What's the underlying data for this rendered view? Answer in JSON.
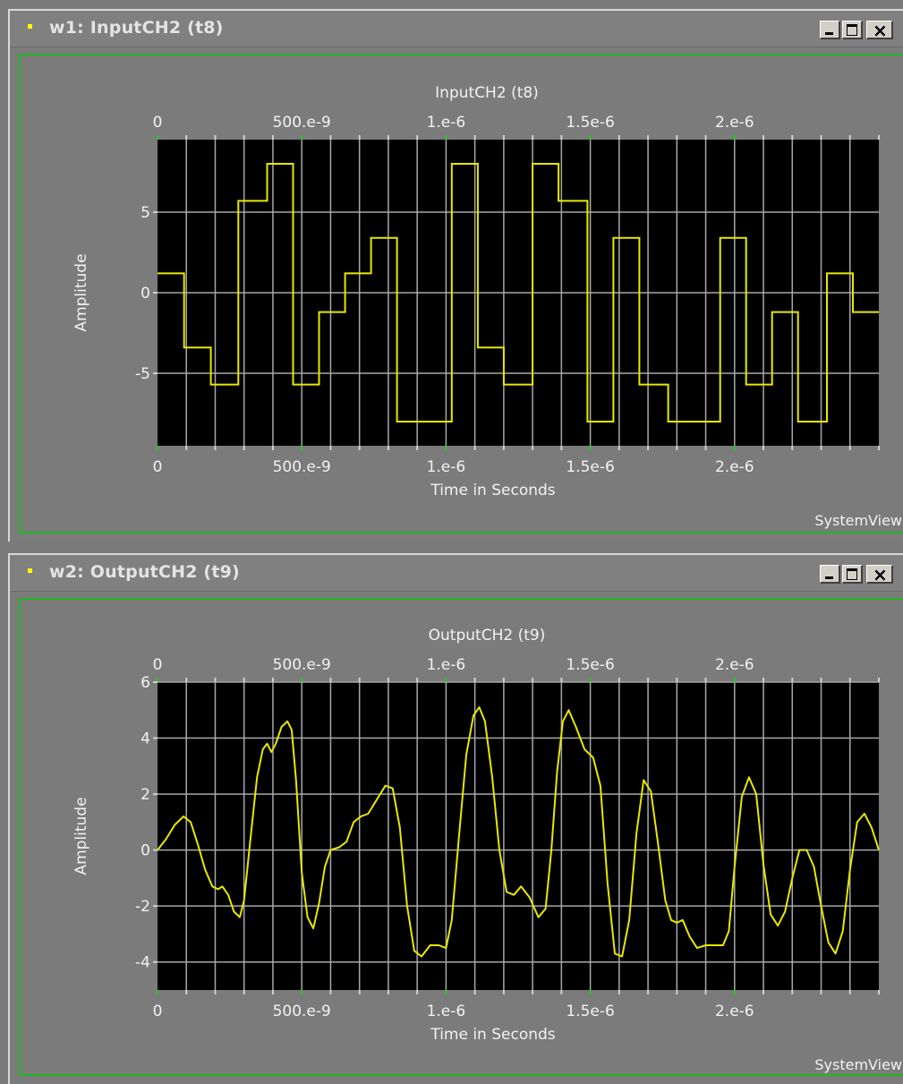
{
  "colors": {
    "plot_bg": "#000000",
    "trace": "#e8e800",
    "grid": "#8a8a8a",
    "frame": "#1fb81f"
  },
  "windows": [
    {
      "title": "w1: InputCH2 (t8)",
      "brand": "SystemView",
      "controls": {
        "minimize_icon": "minimize-icon",
        "maximize_icon": "maximize-icon",
        "close_icon": "close-icon"
      }
    },
    {
      "title": "w2: OutputCH2 (t9)",
      "brand": "SystemView",
      "controls": {
        "minimize_icon": "minimize-icon",
        "maximize_icon": "maximize-icon",
        "close_icon": "close-icon"
      }
    }
  ],
  "chart_data": [
    {
      "type": "line",
      "step": true,
      "title": "InputCH2 (t8)",
      "xlabel": "Time in Seconds",
      "ylabel": "Amplitude",
      "xlim": [
        0,
        2.5e-06
      ],
      "ylim": [
        -9.5,
        9.5
      ],
      "xticks": [
        0,
        5e-07,
        1e-06,
        1.5e-06,
        2e-06
      ],
      "xtick_labels": [
        "0",
        "500.e-9",
        "1.e-6",
        "1.5e-6",
        "2.e-6"
      ],
      "yticks": [
        5,
        0,
        -5
      ],
      "ytick_labels": [
        "5",
        "0",
        "-5"
      ],
      "grid": true,
      "series": [
        {
          "values": [
            [
              0,
              1.2
            ],
            [
              9.2e-08,
              1.2
            ],
            [
              9.2e-08,
              -3.4
            ],
            [
              1.85e-07,
              -3.4
            ],
            [
              1.85e-07,
              -5.7
            ],
            [
              2.8e-07,
              -5.7
            ],
            [
              2.8e-07,
              5.7
            ],
            [
              3.8e-07,
              5.7
            ],
            [
              3.8e-07,
              8.0
            ],
            [
              4.7e-07,
              8.0
            ],
            [
              4.7e-07,
              -5.7
            ],
            [
              5.6e-07,
              -5.7
            ],
            [
              5.6e-07,
              -1.2
            ],
            [
              6.5e-07,
              -1.2
            ],
            [
              6.5e-07,
              1.2
            ],
            [
              7.4e-07,
              1.2
            ],
            [
              7.4e-07,
              3.4
            ],
            [
              8.3e-07,
              3.4
            ],
            [
              8.3e-07,
              -8.0
            ],
            [
              1.02e-06,
              -8.0
            ],
            [
              1.02e-06,
              8.0
            ],
            [
              1.11e-06,
              8.0
            ],
            [
              1.11e-06,
              -3.4
            ],
            [
              1.2e-06,
              -3.4
            ],
            [
              1.2e-06,
              -5.7
            ],
            [
              1.3e-06,
              -5.7
            ],
            [
              1.3e-06,
              8.0
            ],
            [
              1.39e-06,
              8.0
            ],
            [
              1.39e-06,
              5.7
            ],
            [
              1.49e-06,
              5.7
            ],
            [
              1.49e-06,
              -8.0
            ],
            [
              1.58e-06,
              -8.0
            ],
            [
              1.58e-06,
              3.4
            ],
            [
              1.67e-06,
              3.4
            ],
            [
              1.67e-06,
              -5.7
            ],
            [
              1.77e-06,
              -5.7
            ],
            [
              1.77e-06,
              -8.0
            ],
            [
              1.95e-06,
              -8.0
            ],
            [
              1.95e-06,
              3.4
            ],
            [
              2.04e-06,
              3.4
            ],
            [
              2.04e-06,
              -5.7
            ],
            [
              2.13e-06,
              -5.7
            ],
            [
              2.13e-06,
              -1.2
            ],
            [
              2.22e-06,
              -1.2
            ],
            [
              2.22e-06,
              -8.0
            ],
            [
              2.32e-06,
              -8.0
            ],
            [
              2.32e-06,
              1.2
            ],
            [
              2.41e-06,
              1.2
            ],
            [
              2.41e-06,
              -1.2
            ],
            [
              2.5e-06,
              -1.2
            ]
          ]
        }
      ]
    },
    {
      "type": "line",
      "step": false,
      "title": "OutputCH2 (t9)",
      "xlabel": "Time in Seconds",
      "ylabel": "Amplitude",
      "xlim": [
        0,
        2.5e-06
      ],
      "ylim": [
        -5,
        6
      ],
      "xticks": [
        0,
        5e-07,
        1e-06,
        1.5e-06,
        2e-06
      ],
      "xtick_labels": [
        "0",
        "500.e-9",
        "1.e-6",
        "1.5e-6",
        "2.e-6"
      ],
      "yticks": [
        6,
        4,
        2,
        0,
        -2,
        -4
      ],
      "ytick_labels": [
        "6",
        "4",
        "2",
        "0",
        "-2",
        "-4"
      ],
      "grid": true,
      "series": [
        {
          "values": [
            [
              0,
              0.0
            ],
            [
              3e-08,
              0.4
            ],
            [
              6e-08,
              0.9
            ],
            [
              9e-08,
              1.2
            ],
            [
              1.15e-07,
              1.0
            ],
            [
              1.4e-07,
              0.2
            ],
            [
              1.65e-07,
              -0.7
            ],
            [
              1.9e-07,
              -1.3
            ],
            [
              2.1e-07,
              -1.4
            ],
            [
              2.25e-07,
              -1.3
            ],
            [
              2.45e-07,
              -1.6
            ],
            [
              2.65e-07,
              -2.2
            ],
            [
              2.85e-07,
              -2.4
            ],
            [
              3e-07,
              -1.8
            ],
            [
              3.2e-07,
              0.2
            ],
            [
              3.45e-07,
              2.6
            ],
            [
              3.65e-07,
              3.6
            ],
            [
              3.8e-07,
              3.8
            ],
            [
              3.95e-07,
              3.5
            ],
            [
              4.1e-07,
              3.8
            ],
            [
              4.3e-07,
              4.4
            ],
            [
              4.5e-07,
              4.6
            ],
            [
              4.65e-07,
              4.3
            ],
            [
              4.8e-07,
              2.5
            ],
            [
              5e-07,
              -0.8
            ],
            [
              5.2e-07,
              -2.4
            ],
            [
              5.4e-07,
              -2.8
            ],
            [
              5.6e-07,
              -1.9
            ],
            [
              5.8e-07,
              -0.6
            ],
            [
              6e-07,
              0.0
            ],
            [
              6.3e-07,
              0.1
            ],
            [
              6.55e-07,
              0.3
            ],
            [
              6.8e-07,
              1.0
            ],
            [
              7.05e-07,
              1.2
            ],
            [
              7.3e-07,
              1.3
            ],
            [
              7.6e-07,
              1.8
            ],
            [
              7.9e-07,
              2.3
            ],
            [
              8.15e-07,
              2.2
            ],
            [
              8.4e-07,
              0.8
            ],
            [
              8.65e-07,
              -2.0
            ],
            [
              8.9e-07,
              -3.6
            ],
            [
              9.15e-07,
              -3.8
            ],
            [
              9.45e-07,
              -3.4
            ],
            [
              9.75e-07,
              -3.4
            ],
            [
              1e-06,
              -3.5
            ],
            [
              1.02e-06,
              -2.5
            ],
            [
              1.045e-06,
              0.5
            ],
            [
              1.07e-06,
              3.4
            ],
            [
              1.095e-06,
              4.8
            ],
            [
              1.115e-06,
              5.1
            ],
            [
              1.135e-06,
              4.6
            ],
            [
              1.16e-06,
              2.6
            ],
            [
              1.185e-06,
              0.0
            ],
            [
              1.21e-06,
              -1.5
            ],
            [
              1.235e-06,
              -1.6
            ],
            [
              1.26e-06,
              -1.3
            ],
            [
              1.29e-06,
              -1.7
            ],
            [
              1.32e-06,
              -2.4
            ],
            [
              1.345e-06,
              -2.1
            ],
            [
              1.365e-06,
              0.0
            ],
            [
              1.385e-06,
              2.8
            ],
            [
              1.405e-06,
              4.6
            ],
            [
              1.425e-06,
              5.0
            ],
            [
              1.45e-06,
              4.4
            ],
            [
              1.48e-06,
              3.6
            ],
            [
              1.51e-06,
              3.3
            ],
            [
              1.535e-06,
              2.3
            ],
            [
              1.56e-06,
              -1.2
            ],
            [
              1.585e-06,
              -3.7
            ],
            [
              1.61e-06,
              -3.8
            ],
            [
              1.635e-06,
              -2.5
            ],
            [
              1.66e-06,
              0.6
            ],
            [
              1.685e-06,
              2.5
            ],
            [
              1.71e-06,
              2.1
            ],
            [
              1.735e-06,
              0.2
            ],
            [
              1.76e-06,
              -1.8
            ],
            [
              1.78e-06,
              -2.5
            ],
            [
              1.8e-06,
              -2.6
            ],
            [
              1.82e-06,
              -2.5
            ],
            [
              1.845e-06,
              -3.1
            ],
            [
              1.87e-06,
              -3.5
            ],
            [
              1.9e-06,
              -3.4
            ],
            [
              1.93e-06,
              -3.4
            ],
            [
              1.96e-06,
              -3.4
            ],
            [
              1.98e-06,
              -2.9
            ],
            [
              2e-06,
              -0.6
            ],
            [
              2.025e-06,
              1.9
            ],
            [
              2.05e-06,
              2.6
            ],
            [
              2.075e-06,
              2.0
            ],
            [
              2.1e-06,
              -0.5
            ],
            [
              2.125e-06,
              -2.3
            ],
            [
              2.15e-06,
              -2.7
            ],
            [
              2.175e-06,
              -2.2
            ],
            [
              2.2e-06,
              -1.0
            ],
            [
              2.225e-06,
              0.0
            ],
            [
              2.25e-06,
              0.0
            ],
            [
              2.275e-06,
              -0.6
            ],
            [
              2.3e-06,
              -2.0
            ],
            [
              2.325e-06,
              -3.3
            ],
            [
              2.35e-06,
              -3.7
            ],
            [
              2.375e-06,
              -2.9
            ],
            [
              2.4e-06,
              -0.7
            ],
            [
              2.425e-06,
              1.0
            ],
            [
              2.45e-06,
              1.3
            ],
            [
              2.475e-06,
              0.8
            ],
            [
              2.5e-06,
              0.0
            ]
          ]
        }
      ]
    }
  ]
}
